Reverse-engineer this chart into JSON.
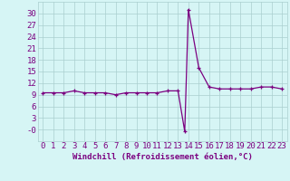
{
  "x": [
    0,
    1,
    2,
    3,
    4,
    5,
    6,
    7,
    8,
    9,
    10,
    11,
    12,
    13,
    13.65,
    14,
    15,
    16,
    17,
    18,
    19,
    20,
    21,
    22,
    23
  ],
  "y": [
    9.5,
    9.5,
    9.5,
    10.0,
    9.5,
    9.5,
    9.5,
    9.0,
    9.5,
    9.5,
    9.5,
    9.5,
    10.0,
    10.0,
    -0.5,
    31.0,
    16.0,
    11.0,
    10.5,
    10.5,
    10.5,
    10.5,
    11.0,
    11.0,
    10.5
  ],
  "xlabel": "Windchill (Refroidissement éolien,°C)",
  "ylim": [
    -3,
    33
  ],
  "xlim": [
    -0.5,
    23.5
  ],
  "yticks": [
    -3,
    0,
    3,
    6,
    9,
    12,
    15,
    18,
    21,
    24,
    27,
    30
  ],
  "ytick_labels": [
    "",
    "-0",
    "3",
    "6",
    "9",
    "12",
    "15",
    "18",
    "21",
    "24",
    "27",
    "30"
  ],
  "xticks": [
    0,
    1,
    2,
    3,
    4,
    5,
    6,
    7,
    8,
    9,
    10,
    11,
    12,
    13,
    14,
    15,
    16,
    17,
    18,
    19,
    20,
    21,
    22,
    23
  ],
  "line_color": "#7b0080",
  "marker": "+",
  "bg_color": "#d6f5f5",
  "grid_color": "#aacfcf",
  "tick_label_color": "#7b0080",
  "font_size": 6.5
}
